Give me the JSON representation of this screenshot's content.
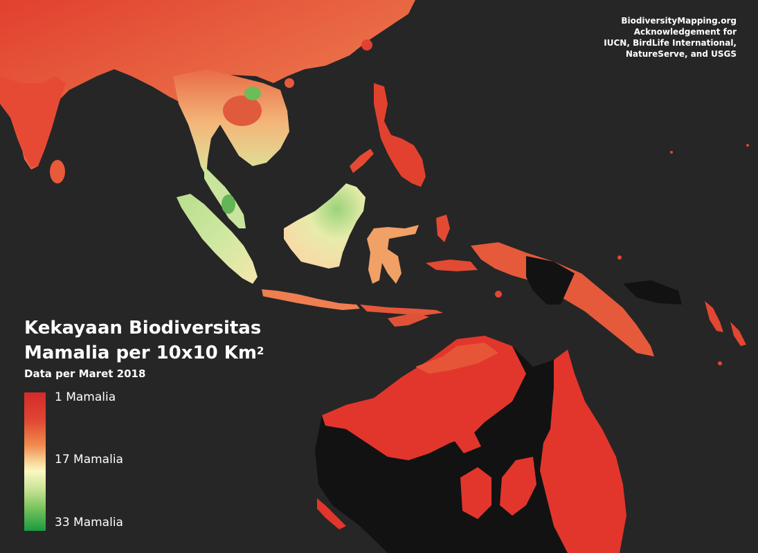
{
  "credit": {
    "line1": "BiodiversityMapping.org",
    "line2": "Acknowledgement for",
    "line3": "IUCN, BirdLife International,",
    "line4": "NatureServe, and USGS"
  },
  "legend": {
    "title_line1": "Kekayaan Biodiversitas",
    "title_line2": "Mamalia per 10x10 Km",
    "title_superscript": "2",
    "subtitle": "Data per Maret 2018",
    "labels": {
      "max": "1 Mamalia",
      "mid": "17 Mamalia",
      "min": "33 Mamalia"
    },
    "colors": {
      "high": "#d42a2a",
      "mid": "#fbf8c2",
      "low": "#1a9a40"
    }
  },
  "map": {
    "background": "#262626",
    "land_nodata": "#121212",
    "region_names": [
      "mainland-asia",
      "india",
      "sri-lanka",
      "indochina",
      "malay-peninsula",
      "sumatra",
      "java",
      "borneo",
      "sulawesi",
      "philippines",
      "lesser-sunda",
      "maluku",
      "new-guinea",
      "australia",
      "tasmania",
      "solomon-islands"
    ]
  }
}
